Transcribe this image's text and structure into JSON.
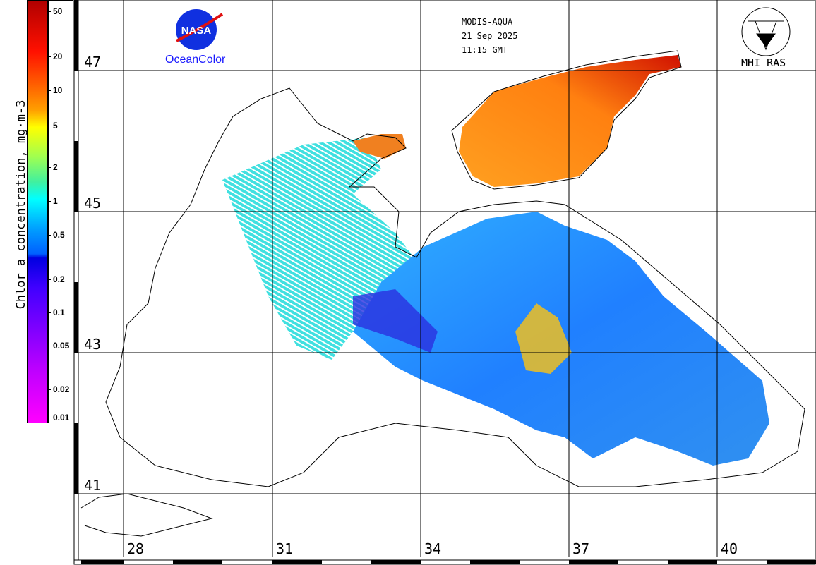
{
  "colorbar": {
    "title": "Chlor_a concentration, mg·m-3",
    "ticks": [
      "50",
      "20",
      "10",
      "5",
      "2",
      "1",
      "0.5",
      "0.2",
      "0.1",
      "0.05",
      "0.02",
      "0.01"
    ],
    "colors": {
      "high": "#b00000",
      "mid": "#00ffff",
      "low": "#ff00ff"
    }
  },
  "header": {
    "sensor": "MODIS-AQUA",
    "date": "21 Sep 2025",
    "time": "11:15 GMT"
  },
  "logos": {
    "nasa": "NASA",
    "oceancolor": "OceanColor",
    "mhi": "MHI RAS"
  },
  "map": {
    "latitudes": [
      "47",
      "45",
      "43",
      "41"
    ],
    "longitudes": [
      "28",
      "31",
      "34",
      "37",
      "40"
    ]
  }
}
